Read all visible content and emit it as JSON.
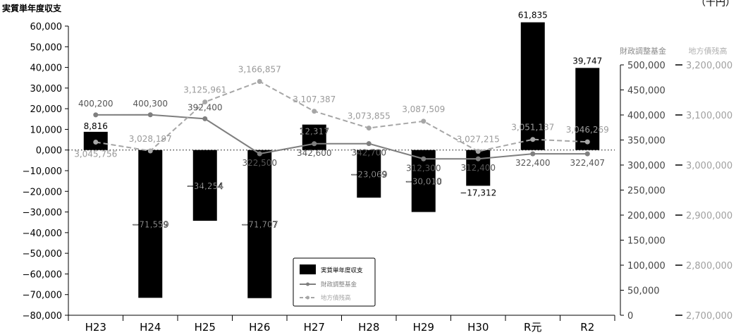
{
  "unit_mark": "（千円）",
  "legend_title_y2": "財政調整基金",
  "legend_title_y3": "地方債残高",
  "chart_data": {
    "type": "bar+line",
    "ylabel": "実質単年度収支",
    "ylim": [
      -80000,
      60000
    ],
    "y_ticks": [
      "60,000",
      "50,000",
      "40,000",
      "30,000",
      "20,000",
      "10,000",
      "0,000",
      "−10,000",
      "−20,000",
      "−30,000",
      "−40,000",
      "−50,000",
      "−60,000",
      "−70,000",
      "−80,000"
    ],
    "y2_ylim": [
      0,
      500000
    ],
    "y2_ticks": [
      "500,000",
      "450,000",
      "400,000",
      "350,000",
      "300,000",
      "250,000",
      "200,000",
      "150,000",
      "100,000",
      "50,000",
      "0"
    ],
    "y3_ylim": [
      2700000,
      3200000
    ],
    "y3_ticks": [
      "3,200,000",
      "3,100,000",
      "3,000,000",
      "2,900,000",
      "2,800,000",
      "2,700,000"
    ],
    "categories": [
      "H23",
      "H24",
      "H25",
      "H26",
      "H27",
      "H28",
      "H29",
      "H30",
      "R元",
      "R2"
    ],
    "series": [
      {
        "name": "実質単年度収支",
        "kind": "bar",
        "color": "#000000",
        "values": [
          8816,
          -71559,
          -34254,
          -71707,
          12317,
          -23069,
          -30010,
          -17312,
          61835,
          39747
        ],
        "labels": [
          "8,816",
          "−71,559",
          "−34,254",
          "−71,707",
          "12,317",
          "−23,069",
          "−30,010",
          "−17,312",
          "61,835",
          "39,747"
        ]
      },
      {
        "name": "財政調整基金",
        "kind": "line",
        "color": "#7f7f7f",
        "values": [
          400200,
          400300,
          392400,
          322500,
          342600,
          342700,
          312300,
          312400,
          322400,
          322407
        ],
        "labels": [
          "400,200",
          "400,300",
          "392,400",
          "322,500",
          "342,600",
          "342,700",
          "312,300",
          "312,400",
          "322,400",
          "322,407"
        ]
      },
      {
        "name": "地方債残高",
        "kind": "dashed-line",
        "color": "#a6a6a6",
        "values": [
          3045756,
          3028197,
          3125961,
          3166857,
          3107387,
          3073855,
          3087509,
          3027215,
          3051137,
          3046269
        ],
        "labels": [
          "3,045,756",
          "3,028,197",
          "3,125,961",
          "3,166,857",
          "3,107,387",
          "3,073,855",
          "3,087,509",
          "3,027,215",
          "3,051,137",
          "3,046,269"
        ]
      }
    ],
    "legend": {
      "placement": "bottom-center",
      "entries": [
        "実質単年度収支",
        "財政調整基金",
        "地方債残高"
      ]
    },
    "zero_line": "dotted"
  }
}
